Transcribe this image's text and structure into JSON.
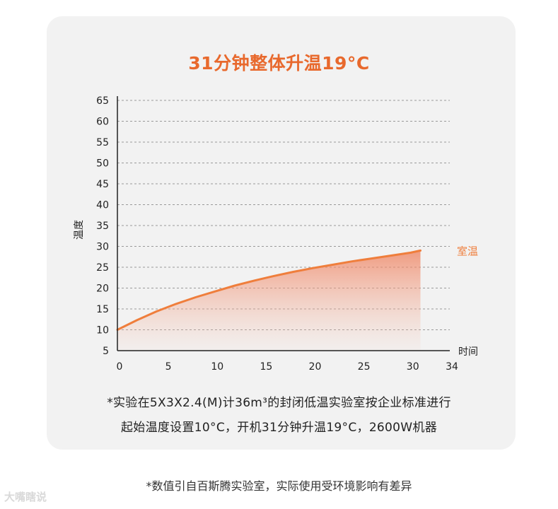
{
  "title": "31分钟整体升温19°C",
  "chart_data": {
    "type": "area",
    "title": "31分钟整体升温19°C",
    "xlabel": "时间",
    "ylabel": "温度",
    "xlim": [
      0,
      34
    ],
    "ylim": [
      5,
      65
    ],
    "x_ticks": [
      0,
      5,
      10,
      15,
      20,
      25,
      30,
      34
    ],
    "y_ticks": [
      5,
      10,
      15,
      20,
      25,
      30,
      35,
      40,
      45,
      50,
      55,
      60,
      65
    ],
    "grid": true,
    "series": [
      {
        "name": "室温",
        "color": "#ef7e3c",
        "x": [
          0,
          2,
          4,
          6,
          8,
          10,
          12,
          14,
          16,
          18,
          20,
          22,
          24,
          26,
          28,
          30,
          31
        ],
        "y": [
          10,
          12.3,
          14.4,
          16.2,
          17.8,
          19.2,
          20.6,
          21.8,
          22.9,
          23.9,
          24.8,
          25.6,
          26.4,
          27.1,
          27.8,
          28.5,
          29
        ]
      }
    ]
  },
  "notes": {
    "line1": "*实验在5X3X2.4(M)计36m³的封闭低温实验室按企业标准进行",
    "line2": "起始温度设置10°C，开机31分钟升温19°C，2600W机器"
  },
  "footnote": "*数值引自百斯腾实验室，实际使用受环境影响有差异",
  "watermark": "大嘴瞎说"
}
